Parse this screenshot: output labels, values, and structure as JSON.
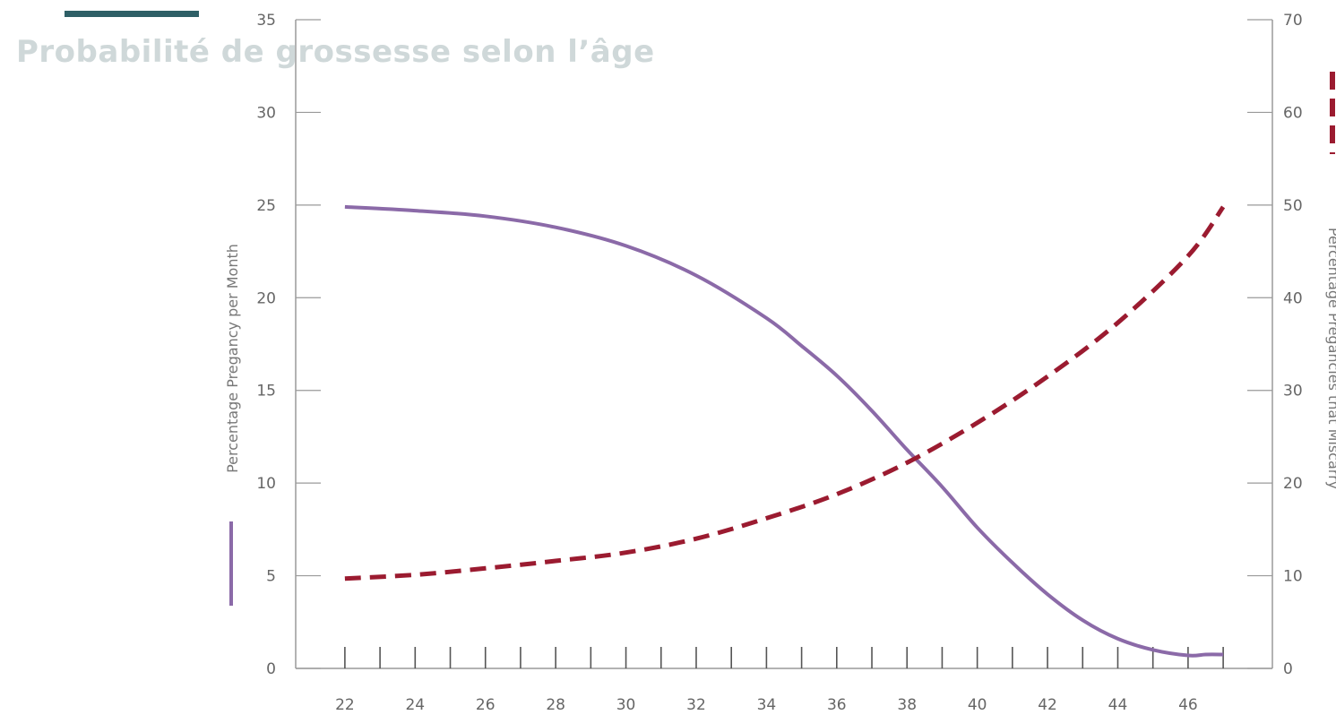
{
  "title": "Probabilité de grossesse selon l’âge",
  "chart_data": {
    "type": "line",
    "x_ticks": [
      22,
      24,
      26,
      28,
      30,
      32,
      34,
      36,
      38,
      40,
      42,
      44,
      46
    ],
    "xlim": [
      20.6,
      48.4
    ],
    "ylabel": "Percentage Pregancy per Month",
    "ylim": [
      0,
      35
    ],
    "y_ticks": [
      0,
      5,
      10,
      15,
      20,
      25,
      30,
      35
    ],
    "y2label": "Percentage Pregancies that Miscarry",
    "y2lim": [
      0,
      70
    ],
    "y2_ticks": [
      0,
      10,
      20,
      30,
      40,
      50,
      60,
      70
    ],
    "series": [
      {
        "axis": "left",
        "style": "solid",
        "color": "#8b6aa8",
        "points": [
          [
            22,
            24.9
          ],
          [
            24,
            24.7
          ],
          [
            26,
            24.4
          ],
          [
            28,
            23.8
          ],
          [
            30,
            22.8
          ],
          [
            32,
            21.2
          ],
          [
            34,
            18.9
          ],
          [
            35,
            17.4
          ],
          [
            36,
            15.8
          ],
          [
            37,
            13.9
          ],
          [
            38,
            11.8
          ],
          [
            39,
            9.8
          ],
          [
            40,
            7.6
          ],
          [
            41,
            5.7
          ],
          [
            42,
            4.0
          ],
          [
            43,
            2.6
          ],
          [
            44,
            1.6
          ],
          [
            45,
            1.0
          ],
          [
            46,
            0.7
          ],
          [
            46.5,
            0.75
          ],
          [
            47,
            0.75
          ]
        ]
      },
      {
        "axis": "right",
        "style": "dashed",
        "color": "#9b1b30",
        "points": [
          [
            22,
            9.7
          ],
          [
            24,
            10.1
          ],
          [
            26,
            10.8
          ],
          [
            28,
            11.6
          ],
          [
            30,
            12.5
          ],
          [
            32,
            14.0
          ],
          [
            34,
            16.2
          ],
          [
            36,
            18.8
          ],
          [
            38,
            22.2
          ],
          [
            40,
            26.5
          ],
          [
            42,
            31.5
          ],
          [
            44,
            37.3
          ],
          [
            46,
            44.5
          ],
          [
            47,
            49.8
          ]
        ]
      }
    ],
    "grid": false
  }
}
